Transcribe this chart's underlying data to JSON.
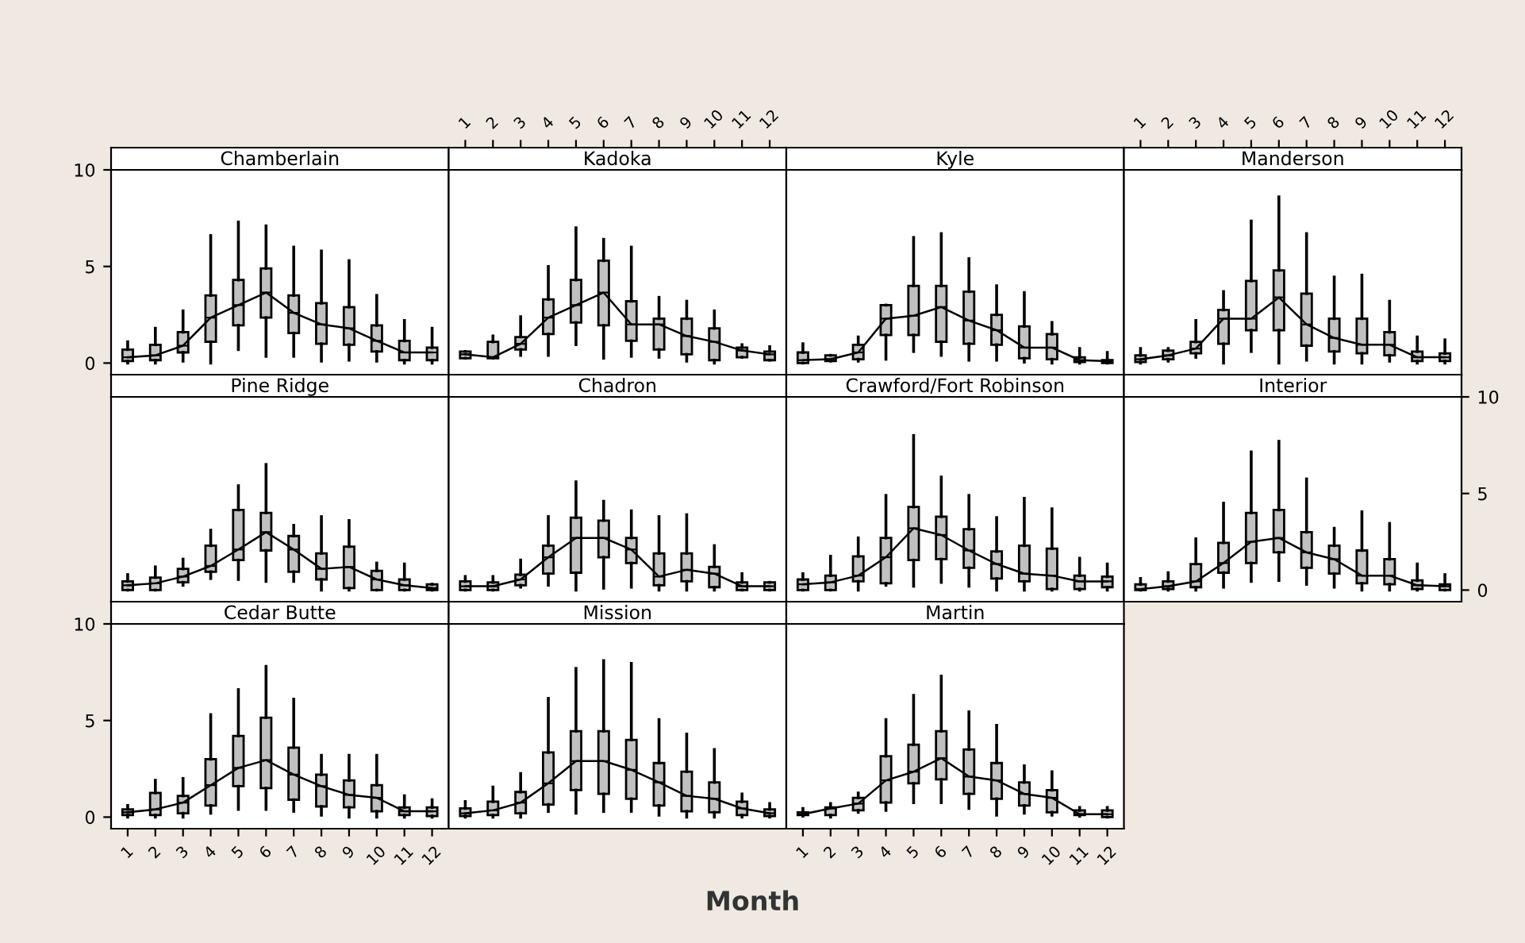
{
  "chart_data": [
    {
      "type": "box",
      "title": "Chamberlain",
      "categories": [
        "1",
        "2",
        "3",
        "4",
        "5",
        "6",
        "7",
        "8",
        "9",
        "10",
        "11",
        "12"
      ],
      "color": "#c0c0c0",
      "ylim": [
        -0.6,
        10
      ],
      "yticks": [
        0,
        5,
        10
      ],
      "tick_labels": "y",
      "boxes": [
        {
          "low": 0,
          "q1": 0.1,
          "median": 0.3,
          "q3": 0.7,
          "high": 1.1
        },
        {
          "low": 0,
          "q1": 0.15,
          "median": 0.4,
          "q3": 0.95,
          "high": 1.8
        },
        {
          "low": 0.1,
          "q1": 0.55,
          "median": 0.9,
          "q3": 1.6,
          "high": 2.7
        },
        {
          "low": 0,
          "q1": 1.1,
          "median": 2.35,
          "q3": 3.5,
          "high": 6.6
        },
        {
          "low": 0.7,
          "q1": 1.95,
          "median": 3.0,
          "q3": 4.3,
          "high": 7.3
        },
        {
          "low": 0.35,
          "q1": 2.35,
          "median": 3.65,
          "q3": 4.9,
          "high": 7.1
        },
        {
          "low": 0.35,
          "q1": 1.55,
          "median": 2.6,
          "q3": 3.5,
          "high": 6.0
        },
        {
          "low": 0.1,
          "q1": 1.0,
          "median": 2.0,
          "q3": 3.1,
          "high": 5.8
        },
        {
          "low": 0.15,
          "q1": 0.95,
          "median": 1.8,
          "q3": 2.9,
          "high": 5.3
        },
        {
          "low": 0.1,
          "q1": 0.6,
          "median": 1.15,
          "q3": 1.95,
          "high": 3.5
        },
        {
          "low": 0,
          "q1": 0.15,
          "median": 0.55,
          "q3": 1.15,
          "high": 2.2
        },
        {
          "low": 0,
          "q1": 0.15,
          "median": 0.55,
          "q3": 0.8,
          "high": 1.8
        }
      ],
      "series": [
        {
          "type": "line",
          "color": "#000000",
          "values": [
            0.3,
            0.4,
            0.9,
            2.35,
            3.0,
            3.65,
            2.6,
            2.0,
            1.8,
            1.15,
            0.55,
            0.55
          ]
        }
      ]
    },
    {
      "type": "box",
      "title": "Kadoka",
      "categories": [
        "1",
        "2",
        "3",
        "4",
        "5",
        "6",
        "7",
        "8",
        "9",
        "10",
        "11",
        "12"
      ],
      "color": "#c0c0c0",
      "ylim": [
        -0.6,
        10
      ],
      "yticks": [
        0,
        5,
        10
      ],
      "tick_labels": "x",
      "boxes": [
        {
          "low": 0.25,
          "q1": 0.25,
          "median": 0.45,
          "q3": 0.6,
          "high": 0.6
        },
        {
          "low": 0.25,
          "q1": 0.25,
          "median": 0.3,
          "q3": 1.1,
          "high": 1.4
        },
        {
          "low": 0.4,
          "q1": 0.7,
          "median": 1.0,
          "q3": 1.35,
          "high": 2.4
        },
        {
          "low": 0.4,
          "q1": 1.5,
          "median": 2.35,
          "q3": 3.3,
          "high": 5.0
        },
        {
          "low": 0.95,
          "q1": 2.1,
          "median": 3.0,
          "q3": 4.3,
          "high": 7.0
        },
        {
          "low": 0.25,
          "q1": 1.95,
          "median": 3.65,
          "q3": 5.3,
          "high": 6.4
        },
        {
          "low": 0.35,
          "q1": 1.15,
          "median": 2.0,
          "q3": 3.2,
          "high": 6.0
        },
        {
          "low": 0.3,
          "q1": 0.7,
          "median": 2.0,
          "q3": 2.3,
          "high": 3.4
        },
        {
          "low": 0.1,
          "q1": 0.45,
          "median": 1.4,
          "q3": 2.3,
          "high": 3.2
        },
        {
          "low": 0,
          "q1": 0.15,
          "median": 1.1,
          "q3": 1.8,
          "high": 2.7
        },
        {
          "low": 0.3,
          "q1": 0.3,
          "median": 0.65,
          "q3": 0.8,
          "high": 0.95
        },
        {
          "low": 0.15,
          "q1": 0.15,
          "median": 0.45,
          "q3": 0.6,
          "high": 0.85
        }
      ],
      "series": [
        {
          "type": "line",
          "color": "#000000",
          "values": [
            0.45,
            0.3,
            1.0,
            2.35,
            3.0,
            3.65,
            2.0,
            2.0,
            1.4,
            1.1,
            0.65,
            0.45
          ]
        }
      ]
    },
    {
      "type": "box",
      "title": "Kyle",
      "categories": [
        "1",
        "2",
        "3",
        "4",
        "5",
        "6",
        "7",
        "8",
        "9",
        "10",
        "11",
        "12"
      ],
      "color": "#c0c0c0",
      "ylim": [
        -0.6,
        10
      ],
      "yticks": [
        0,
        5,
        10
      ],
      "tick_labels": false,
      "boxes": [
        {
          "low": 0,
          "q1": 0,
          "median": 0.15,
          "q3": 0.55,
          "high": 1.0
        },
        {
          "low": 0.1,
          "q1": 0.1,
          "median": 0.2,
          "q3": 0.4,
          "high": 0.4
        },
        {
          "low": 0.1,
          "q1": 0.2,
          "median": 0.55,
          "q3": 0.95,
          "high": 1.35
        },
        {
          "low": 0.2,
          "q1": 1.45,
          "median": 2.3,
          "q3": 3.0,
          "high": 3.0
        },
        {
          "low": 0.6,
          "q1": 1.45,
          "median": 2.45,
          "q3": 4.0,
          "high": 6.5
        },
        {
          "low": 0.4,
          "q1": 1.1,
          "median": 2.9,
          "q3": 4.0,
          "high": 6.7
        },
        {
          "low": 0.15,
          "q1": 1.0,
          "median": 2.2,
          "q3": 3.7,
          "high": 5.4
        },
        {
          "low": 0.15,
          "q1": 0.95,
          "median": 1.7,
          "q3": 2.5,
          "high": 4.0
        },
        {
          "low": 0.05,
          "q1": 0.25,
          "median": 0.8,
          "q3": 1.9,
          "high": 3.65
        },
        {
          "low": 0,
          "q1": 0.2,
          "median": 0.8,
          "q3": 1.5,
          "high": 2.1
        },
        {
          "low": 0,
          "q1": 0.05,
          "median": 0.15,
          "q3": 0.3,
          "high": 0.75
        },
        {
          "low": 0,
          "q1": 0,
          "median": 0.1,
          "q3": 0.15,
          "high": 0.55
        }
      ],
      "series": [
        {
          "type": "line",
          "color": "#000000",
          "values": [
            0.15,
            0.2,
            0.55,
            2.3,
            2.45,
            2.9,
            2.2,
            1.7,
            0.8,
            0.8,
            0.15,
            0.1
          ]
        }
      ]
    },
    {
      "type": "box",
      "title": "Manderson",
      "categories": [
        "1",
        "2",
        "3",
        "4",
        "5",
        "6",
        "7",
        "8",
        "9",
        "10",
        "11",
        "12"
      ],
      "color": "#c0c0c0",
      "ylim": [
        -0.6,
        10
      ],
      "yticks": [
        0,
        5,
        10
      ],
      "tick_labels": "x",
      "boxes": [
        {
          "low": 0,
          "q1": 0.05,
          "median": 0.2,
          "q3": 0.4,
          "high": 0.75
        },
        {
          "low": 0.1,
          "q1": 0.2,
          "median": 0.4,
          "q3": 0.65,
          "high": 0.75
        },
        {
          "low": 0.3,
          "q1": 0.5,
          "median": 0.75,
          "q3": 1.1,
          "high": 2.2
        },
        {
          "low": 0,
          "q1": 1.0,
          "median": 2.3,
          "q3": 2.75,
          "high": 3.7
        },
        {
          "low": 0.6,
          "q1": 1.7,
          "median": 2.3,
          "q3": 4.25,
          "high": 7.35
        },
        {
          "low": 0,
          "q1": 1.7,
          "median": 3.4,
          "q3": 4.8,
          "high": 8.6
        },
        {
          "low": 0.15,
          "q1": 0.9,
          "median": 2.0,
          "q3": 3.6,
          "high": 6.7
        },
        {
          "low": 0,
          "q1": 0.6,
          "median": 1.3,
          "q3": 2.3,
          "high": 4.45
        },
        {
          "low": 0,
          "q1": 0.5,
          "median": 0.95,
          "q3": 2.3,
          "high": 4.55
        },
        {
          "low": 0.1,
          "q1": 0.4,
          "median": 0.95,
          "q3": 1.6,
          "high": 3.2
        },
        {
          "low": 0,
          "q1": 0.1,
          "median": 0.3,
          "q3": 0.6,
          "high": 1.35
        },
        {
          "low": 0,
          "q1": 0.1,
          "median": 0.3,
          "q3": 0.5,
          "high": 1.2
        }
      ],
      "series": [
        {
          "type": "line",
          "color": "#000000",
          "values": [
            0.2,
            0.4,
            0.75,
            2.3,
            2.3,
            3.4,
            2.0,
            1.3,
            0.95,
            0.95,
            0.3,
            0.3
          ]
        }
      ]
    },
    {
      "type": "box",
      "title": "Pine Ridge",
      "categories": [
        "1",
        "2",
        "3",
        "4",
        "5",
        "6",
        "7",
        "8",
        "9",
        "10",
        "11",
        "12"
      ],
      "color": "#c0c0c0",
      "ylim": [
        -0.6,
        10
      ],
      "yticks": [
        0,
        5,
        10
      ],
      "tick_labels": false,
      "boxes": [
        {
          "low": 0,
          "q1": 0,
          "median": 0.25,
          "q3": 0.45,
          "high": 0.8
        },
        {
          "low": 0,
          "q1": 0,
          "median": 0.35,
          "q3": 0.65,
          "high": 1.2
        },
        {
          "low": 0.25,
          "q1": 0.4,
          "median": 0.7,
          "q3": 1.1,
          "high": 1.6
        },
        {
          "low": 0.6,
          "q1": 0.95,
          "median": 1.25,
          "q3": 2.3,
          "high": 3.1
        },
        {
          "low": 0.55,
          "q1": 1.55,
          "median": 2.1,
          "q3": 4.15,
          "high": 5.4
        },
        {
          "low": 0.45,
          "q1": 2.05,
          "median": 3.0,
          "q3": 4.0,
          "high": 6.5
        },
        {
          "low": 0.45,
          "q1": 0.95,
          "median": 2.1,
          "q3": 2.8,
          "high": 3.35
        },
        {
          "low": 0,
          "q1": 0.55,
          "median": 1.1,
          "q3": 1.9,
          "high": 3.8
        },
        {
          "low": 0,
          "q1": 0.1,
          "median": 1.2,
          "q3": 2.25,
          "high": 3.6
        },
        {
          "low": 0,
          "q1": 0,
          "median": 0.55,
          "q3": 1.0,
          "high": 1.4
        },
        {
          "low": 0,
          "q1": 0,
          "median": 0.25,
          "q3": 0.55,
          "high": 1.35
        },
        {
          "low": 0,
          "q1": 0,
          "median": 0.1,
          "q3": 0.3,
          "high": 0.3
        }
      ],
      "series": [
        {
          "type": "line",
          "color": "#000000",
          "values": [
            0.25,
            0.35,
            0.7,
            1.25,
            2.1,
            3.0,
            2.1,
            1.1,
            1.2,
            0.55,
            0.25,
            0.1
          ]
        }
      ]
    },
    {
      "type": "box",
      "title": "Chadron",
      "categories": [
        "1",
        "2",
        "3",
        "4",
        "5",
        "6",
        "7",
        "8",
        "9",
        "10",
        "11",
        "12"
      ],
      "color": "#c0c0c0",
      "ylim": [
        -0.6,
        10
      ],
      "yticks": [
        0,
        5,
        10
      ],
      "tick_labels": false,
      "boxes": [
        {
          "low": 0,
          "q1": 0,
          "median": 0.2,
          "q3": 0.45,
          "high": 0.7
        },
        {
          "low": 0,
          "q1": 0,
          "median": 0.2,
          "q3": 0.4,
          "high": 0.7
        },
        {
          "low": 0.15,
          "q1": 0.25,
          "median": 0.55,
          "q3": 0.8,
          "high": 1.55
        },
        {
          "low": 0.25,
          "q1": 0.85,
          "median": 1.7,
          "q3": 2.3,
          "high": 3.8
        },
        {
          "low": 0,
          "q1": 0.9,
          "median": 2.7,
          "q3": 3.75,
          "high": 5.6
        },
        {
          "low": 0.1,
          "q1": 1.7,
          "median": 2.7,
          "q3": 3.6,
          "high": 4.6
        },
        {
          "low": 0.15,
          "q1": 1.4,
          "median": 2.1,
          "q3": 2.7,
          "high": 4.1
        },
        {
          "low": 0,
          "q1": 0.25,
          "median": 0.7,
          "q3": 1.9,
          "high": 3.8
        },
        {
          "low": 0,
          "q1": 0.45,
          "median": 1.05,
          "q3": 1.9,
          "high": 3.9
        },
        {
          "low": 0,
          "q1": 0.15,
          "median": 0.85,
          "q3": 1.2,
          "high": 2.3
        },
        {
          "low": 0,
          "q1": 0,
          "median": 0.2,
          "q3": 0.4,
          "high": 0.85
        },
        {
          "low": 0,
          "q1": 0,
          "median": 0.2,
          "q3": 0.4,
          "high": 0.4
        }
      ],
      "series": [
        {
          "type": "line",
          "color": "#000000",
          "values": [
            0.2,
            0.2,
            0.55,
            1.7,
            2.7,
            2.7,
            2.1,
            0.7,
            1.05,
            0.85,
            0.2,
            0.2
          ]
        }
      ]
    },
    {
      "type": "box",
      "title": "Crawford/Fort Robinson",
      "categories": [
        "1",
        "2",
        "3",
        "4",
        "5",
        "6",
        "7",
        "8",
        "9",
        "10",
        "11",
        "12"
      ],
      "color": "#c0c0c0",
      "ylim": [
        -0.6,
        10
      ],
      "yticks": [
        0,
        5,
        10
      ],
      "tick_labels": false,
      "boxes": [
        {
          "low": 0,
          "q1": 0,
          "median": 0.3,
          "q3": 0.55,
          "high": 0.85
        },
        {
          "low": 0,
          "q1": 0,
          "median": 0.4,
          "q3": 0.75,
          "high": 1.75
        },
        {
          "low": 0,
          "q1": 0.45,
          "median": 0.75,
          "q3": 1.75,
          "high": 2.7
        },
        {
          "low": 0.25,
          "q1": 0.35,
          "median": 1.7,
          "q3": 2.7,
          "high": 4.9
        },
        {
          "low": 0.2,
          "q1": 1.55,
          "median": 3.2,
          "q3": 4.3,
          "high": 8.0
        },
        {
          "low": 0.4,
          "q1": 1.6,
          "median": 2.85,
          "q3": 3.8,
          "high": 5.85
        },
        {
          "low": 0.2,
          "q1": 1.15,
          "median": 2.05,
          "q3": 3.15,
          "high": 4.9
        },
        {
          "low": 0,
          "q1": 0.6,
          "median": 1.35,
          "q3": 2.0,
          "high": 3.75
        },
        {
          "low": 0,
          "q1": 0.45,
          "median": 0.85,
          "q3": 2.3,
          "high": 4.75
        },
        {
          "low": 0,
          "q1": 0.05,
          "median": 0.75,
          "q3": 2.15,
          "high": 4.2
        },
        {
          "low": 0,
          "q1": 0.05,
          "median": 0.45,
          "q3": 0.75,
          "high": 1.65
        },
        {
          "low": 0,
          "q1": 0.15,
          "median": 0.45,
          "q3": 0.7,
          "high": 1.35
        }
      ],
      "series": [
        {
          "type": "line",
          "color": "#000000",
          "values": [
            0.3,
            0.4,
            0.75,
            1.7,
            3.2,
            2.85,
            2.05,
            1.35,
            0.85,
            0.75,
            0.45,
            0.45
          ]
        }
      ]
    },
    {
      "type": "box",
      "title": "Interior",
      "categories": [
        "1",
        "2",
        "3",
        "4",
        "5",
        "6",
        "7",
        "8",
        "9",
        "10",
        "11",
        "12"
      ],
      "color": "#c0c0c0",
      "ylim": [
        -0.6,
        10
      ],
      "yticks": [
        0,
        5,
        10
      ],
      "tick_labels": "y",
      "boxes": [
        {
          "low": 0,
          "q1": 0,
          "median": 0.05,
          "q3": 0.3,
          "high": 0.6
        },
        {
          "low": 0,
          "q1": 0.05,
          "median": 0.2,
          "q3": 0.45,
          "high": 0.9
        },
        {
          "low": 0,
          "q1": 0.15,
          "median": 0.45,
          "q3": 1.35,
          "high": 2.65
        },
        {
          "low": 0.15,
          "q1": 0.9,
          "median": 1.4,
          "q3": 2.45,
          "high": 4.5
        },
        {
          "low": 0.45,
          "q1": 1.4,
          "median": 2.5,
          "q3": 4.0,
          "high": 7.15
        },
        {
          "low": 0.5,
          "q1": 1.95,
          "median": 2.7,
          "q3": 4.15,
          "high": 7.7
        },
        {
          "low": 0.3,
          "q1": 1.15,
          "median": 1.95,
          "q3": 3.0,
          "high": 5.75
        },
        {
          "low": 0.15,
          "q1": 0.85,
          "median": 1.6,
          "q3": 2.3,
          "high": 3.2
        },
        {
          "low": 0,
          "q1": 0.35,
          "median": 0.75,
          "q3": 2.05,
          "high": 4.05
        },
        {
          "low": 0,
          "q1": 0.3,
          "median": 0.75,
          "q3": 1.6,
          "high": 3.45
        },
        {
          "low": 0,
          "q1": 0.05,
          "median": 0.25,
          "q3": 0.5,
          "high": 1.35
        },
        {
          "low": 0,
          "q1": 0,
          "median": 0.2,
          "q3": 0.3,
          "high": 0.8
        }
      ],
      "series": [
        {
          "type": "line",
          "color": "#000000",
          "values": [
            0.05,
            0.2,
            0.45,
            1.4,
            2.5,
            2.7,
            1.95,
            1.6,
            0.75,
            0.75,
            0.25,
            0.2
          ]
        }
      ]
    },
    {
      "type": "box",
      "title": "Cedar Butte",
      "categories": [
        "1",
        "2",
        "3",
        "4",
        "5",
        "6",
        "7",
        "8",
        "9",
        "10",
        "11",
        "12"
      ],
      "color": "#c0c0c0",
      "ylim": [
        -0.6,
        10
      ],
      "yticks": [
        0,
        5,
        10
      ],
      "boxes": [
        {
          "low": 0,
          "q1": 0.1,
          "median": 0.25,
          "q3": 0.4,
          "high": 0.6
        },
        {
          "low": 0,
          "q1": 0.1,
          "median": 0.4,
          "q3": 1.25,
          "high": 1.9
        },
        {
          "low": 0,
          "q1": 0.2,
          "median": 0.75,
          "q3": 1.1,
          "high": 2.0
        },
        {
          "low": 0.2,
          "q1": 0.6,
          "median": 1.65,
          "q3": 3.0,
          "high": 5.3
        },
        {
          "low": 0.4,
          "q1": 1.6,
          "median": 2.55,
          "q3": 4.2,
          "high": 6.6
        },
        {
          "low": 0.4,
          "q1": 1.5,
          "median": 2.95,
          "q3": 5.15,
          "high": 7.8
        },
        {
          "low": 0.3,
          "q1": 0.9,
          "median": 2.2,
          "q3": 3.6,
          "high": 6.1
        },
        {
          "low": 0.1,
          "q1": 0.55,
          "median": 1.6,
          "q3": 2.2,
          "high": 3.2
        },
        {
          "low": 0,
          "q1": 0.5,
          "median": 1.15,
          "q3": 1.9,
          "high": 3.2
        },
        {
          "low": 0,
          "q1": 0.3,
          "median": 1.0,
          "q3": 1.65,
          "high": 3.2
        },
        {
          "low": 0,
          "q1": 0.1,
          "median": 0.3,
          "q3": 0.5,
          "high": 1.1
        },
        {
          "low": 0,
          "q1": 0.05,
          "median": 0.3,
          "q3": 0.5,
          "high": 0.9
        }
      ],
      "series": [
        {
          "type": "line",
          "color": "#000000",
          "values": [
            0.25,
            0.4,
            0.75,
            1.65,
            2.55,
            2.95,
            2.2,
            1.6,
            1.15,
            1.0,
            0.3,
            0.3
          ]
        }
      ]
    },
    {
      "type": "box",
      "title": "Mission",
      "xlabel": "Month",
      "categories": [
        "1",
        "2",
        "3",
        "4",
        "5",
        "6",
        "7",
        "8",
        "9",
        "10",
        "11",
        "12"
      ],
      "color": "#c0c0c0",
      "ylim": [
        -0.6,
        10
      ],
      "yticks": [
        0,
        5,
        10
      ],
      "tick_labels": false,
      "boxes": [
        {
          "low": 0,
          "q1": 0.05,
          "median": 0.2,
          "q3": 0.45,
          "high": 0.8
        },
        {
          "low": 0,
          "q1": 0.1,
          "median": 0.35,
          "q3": 0.8,
          "high": 1.55
        },
        {
          "low": 0,
          "q1": 0.2,
          "median": 0.75,
          "q3": 1.3,
          "high": 2.25
        },
        {
          "low": 0.3,
          "q1": 0.65,
          "median": 1.75,
          "q3": 3.35,
          "high": 6.15
        },
        {
          "low": 0.2,
          "q1": 1.4,
          "median": 2.9,
          "q3": 4.45,
          "high": 7.7
        },
        {
          "low": 0.3,
          "q1": 1.2,
          "median": 2.9,
          "q3": 4.45,
          "high": 8.1
        },
        {
          "low": 0.3,
          "q1": 0.95,
          "median": 2.45,
          "q3": 4.0,
          "high": 7.95
        },
        {
          "low": 0.1,
          "q1": 0.6,
          "median": 1.8,
          "q3": 2.8,
          "high": 5.05
        },
        {
          "low": 0,
          "q1": 0.3,
          "median": 1.1,
          "q3": 2.35,
          "high": 4.3
        },
        {
          "low": 0,
          "q1": 0.25,
          "median": 0.95,
          "q3": 1.8,
          "high": 3.5
        },
        {
          "low": 0,
          "q1": 0.1,
          "median": 0.45,
          "q3": 0.8,
          "high": 1.2
        },
        {
          "low": 0,
          "q1": 0.05,
          "median": 0.2,
          "q3": 0.4,
          "high": 0.7
        }
      ],
      "series": [
        {
          "type": "line",
          "color": "#000000",
          "values": [
            0.2,
            0.35,
            0.75,
            1.75,
            2.9,
            2.9,
            2.45,
            1.8,
            1.1,
            0.95,
            0.45,
            0.2
          ]
        }
      ]
    },
    {
      "type": "box",
      "title": "Martin",
      "categories": [
        "1",
        "2",
        "3",
        "4",
        "5",
        "6",
        "7",
        "8",
        "9",
        "10",
        "11",
        "12"
      ],
      "color": "#c0c0c0",
      "ylim": [
        -0.6,
        10
      ],
      "yticks": [
        0,
        5,
        10
      ],
      "tick_labels": "x",
      "boxes": [
        {
          "low": 0.05,
          "q1": 0.1,
          "median": 0.15,
          "q3": 0.25,
          "high": 0.45
        },
        {
          "low": 0,
          "q1": 0.1,
          "median": 0.45,
          "q3": 0.5,
          "high": 0.7
        },
        {
          "low": 0.25,
          "q1": 0.35,
          "median": 0.7,
          "q3": 1.0,
          "high": 1.25
        },
        {
          "low": 0.35,
          "q1": 0.75,
          "median": 1.9,
          "q3": 3.15,
          "high": 5.05
        },
        {
          "low": 0.75,
          "q1": 1.75,
          "median": 2.35,
          "q3": 3.75,
          "high": 6.3
        },
        {
          "low": 0.75,
          "q1": 1.95,
          "median": 3.05,
          "q3": 4.45,
          "high": 7.3
        },
        {
          "low": 0.45,
          "q1": 1.2,
          "median": 2.1,
          "q3": 3.5,
          "high": 5.45
        },
        {
          "low": 0.1,
          "q1": 0.95,
          "median": 1.9,
          "q3": 2.8,
          "high": 4.75
        },
        {
          "low": 0.2,
          "q1": 0.6,
          "median": 1.2,
          "q3": 1.8,
          "high": 2.65
        },
        {
          "low": 0.1,
          "q1": 0.25,
          "median": 1.0,
          "q3": 1.4,
          "high": 2.35
        },
        {
          "low": 0.05,
          "q1": 0.1,
          "median": 0.15,
          "q3": 0.35,
          "high": 0.5
        },
        {
          "low": 0,
          "q1": 0,
          "median": 0.15,
          "q3": 0.35,
          "high": 0.5
        }
      ],
      "series": [
        {
          "type": "line",
          "color": "#000000",
          "values": [
            0.15,
            0.45,
            0.7,
            1.9,
            2.35,
            3.05,
            2.1,
            1.9,
            1.2,
            1.0,
            0.15,
            0.15
          ]
        }
      ]
    }
  ]
}
